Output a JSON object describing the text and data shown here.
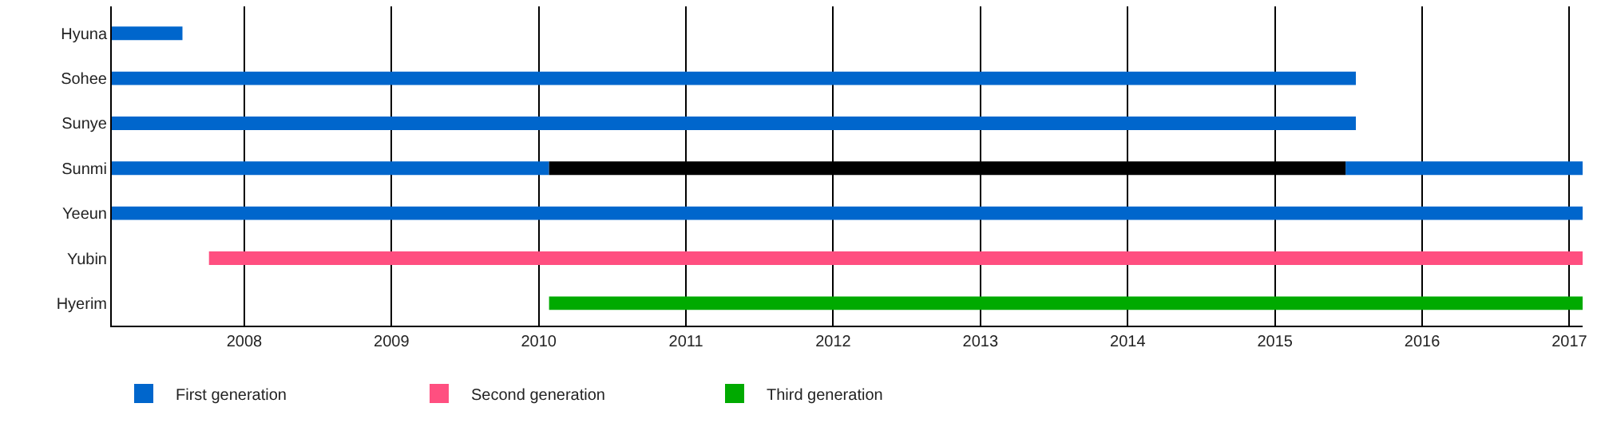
{
  "chart_data": {
    "type": "bar",
    "orientation": "horizontal",
    "categories": [
      "Hyuna",
      "Sohee",
      "Sunye",
      "Sunmi",
      "Yeeun",
      "Yubin",
      "Hyerim"
    ],
    "series": [
      {
        "name": "First generation",
        "color": "#0066cc",
        "values": [
          0.48,
          8.45,
          8.45,
          2.97,
          9.99,
          null,
          null
        ],
        "base": [
          2007.1,
          2007.1,
          2007.1,
          2007.1,
          2007.1,
          null,
          null
        ]
      },
      {
        "color": "#0066cc",
        "values": [
          null,
          null,
          null,
          1.61,
          null,
          null,
          null
        ],
        "base": [
          null,
          null,
          null,
          2015.48,
          null,
          null,
          null
        ]
      },
      {
        "color": "#000000",
        "values": [
          null,
          null,
          null,
          5.41,
          null,
          null,
          null
        ],
        "base": [
          null,
          null,
          null,
          2010.07,
          null,
          null,
          null
        ]
      },
      {
        "name": "Second generation",
        "color": "#ff4f80",
        "values": [
          null,
          null,
          null,
          null,
          null,
          9.33,
          null
        ],
        "base": [
          null,
          null,
          null,
          null,
          null,
          2007.76,
          null
        ]
      },
      {
        "name": "Third generation",
        "color": "#00aa00",
        "values": [
          null,
          null,
          null,
          null,
          null,
          null,
          7.02
        ],
        "base": [
          null,
          null,
          null,
          null,
          null,
          null,
          2010.07
        ]
      }
    ],
    "xlim": [
      2007.1,
      2017.09
    ],
    "xticks": [
      2008,
      2009,
      2010,
      2011,
      2012,
      2013,
      2014,
      2015,
      2016,
      2017
    ],
    "grid": "x",
    "legend": "bottom left"
  }
}
